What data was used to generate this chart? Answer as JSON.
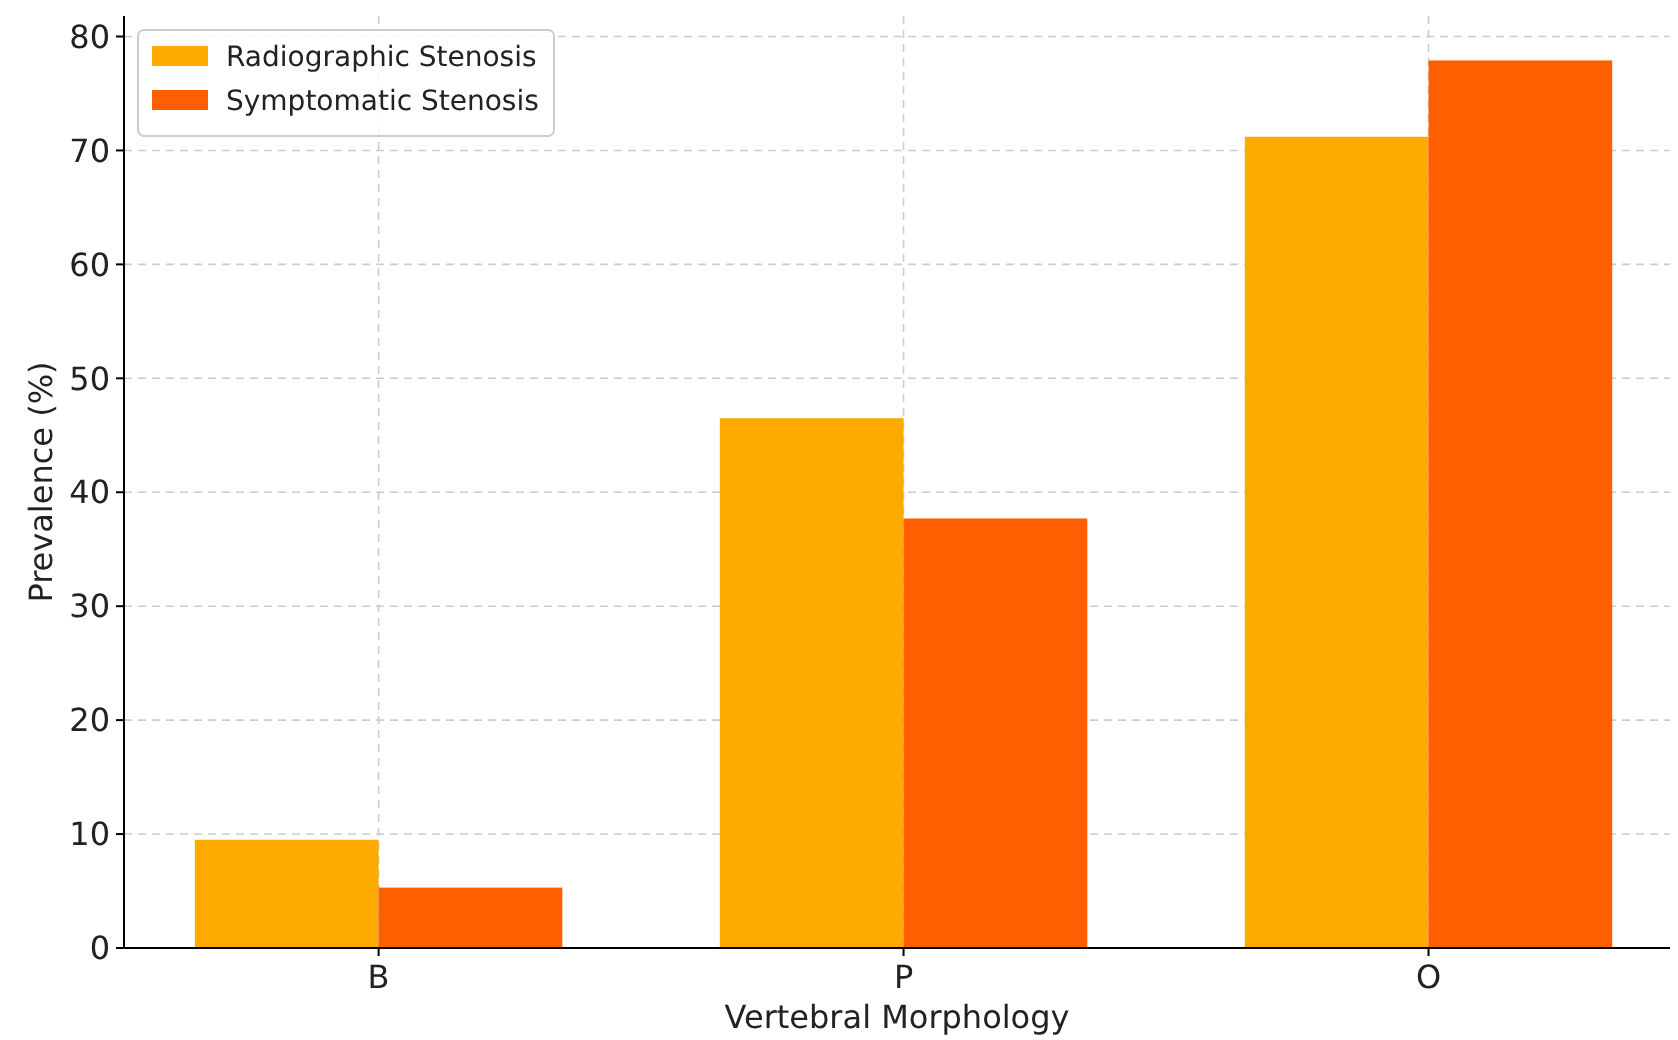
{
  "chart_data": {
    "type": "bar",
    "xlabel": "Vertebral Morphology",
    "ylabel": "Prevalence (%)",
    "categories": [
      "B",
      "P",
      "O"
    ],
    "series": [
      {
        "name": "Radiographic Stenosis",
        "color": "#ffaa00",
        "values": [
          9.5,
          46.5,
          71.2
        ]
      },
      {
        "name": "Symptomatic Stenosis",
        "color": "#ff5f00",
        "values": [
          5.3,
          37.7,
          77.9
        ]
      }
    ],
    "ylim": [
      0,
      81.8
    ],
    "yticks": [
      0,
      10,
      20,
      30,
      40,
      50,
      60,
      70,
      80
    ],
    "grid": true,
    "legend": "top left"
  }
}
